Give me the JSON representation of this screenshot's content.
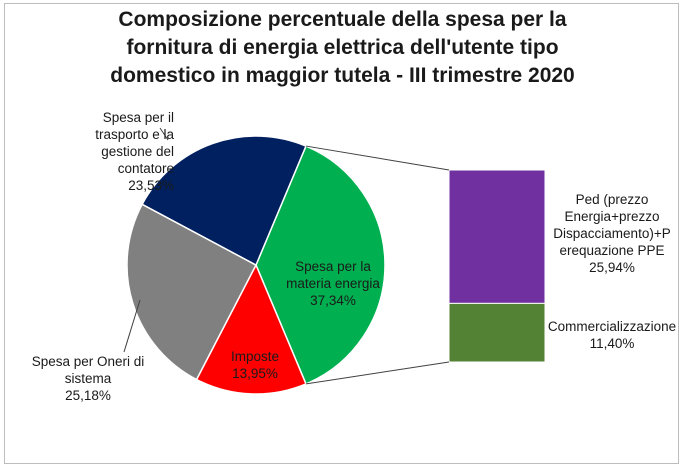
{
  "chart_data": {
    "type": "pie",
    "title": "Composizione percentuale della spesa per la fornitura di energia elettrica dell'utente tipo domestico in maggior tutela - III trimestre 2020",
    "title_lines": [
      "Composizione percentuale della spesa per la",
      "fornitura di energia elettrica dell'utente tipo",
      "domestico in maggior tutela - III trimestre 2020"
    ],
    "slices": [
      {
        "label_lines": [
          "Spesa per la",
          "materia energia"
        ],
        "value_label": "37,34%",
        "value": 37.34,
        "color": "#00b050",
        "exploded_into_bar": true
      },
      {
        "label_lines": [
          "Imposte"
        ],
        "value_label": "13,95%",
        "value": 13.95,
        "color": "#ff0000"
      },
      {
        "label_lines": [
          "Spesa per Oneri di",
          "sistema"
        ],
        "value_label": "25,18%",
        "value": 25.18,
        "color": "#808080"
      },
      {
        "label_lines": [
          "Spesa per il",
          "trasporto e la",
          "gestione del",
          "contatore"
        ],
        "value_label": "23,53%",
        "value": 23.53,
        "color": "#002060"
      }
    ],
    "breakdown_bar": [
      {
        "label_lines": [
          "Ped (prezzo",
          "Energia+prezzo",
          "Dispacciamento)+P",
          "erequazione PPE"
        ],
        "value_label": "25,94%",
        "value": 25.94,
        "color": "#7030a0"
      },
      {
        "label_lines": [
          "Commercializzazione"
        ],
        "value_label": "11,40%",
        "value": 11.4,
        "color": "#548235"
      }
    ],
    "legend": "none"
  }
}
